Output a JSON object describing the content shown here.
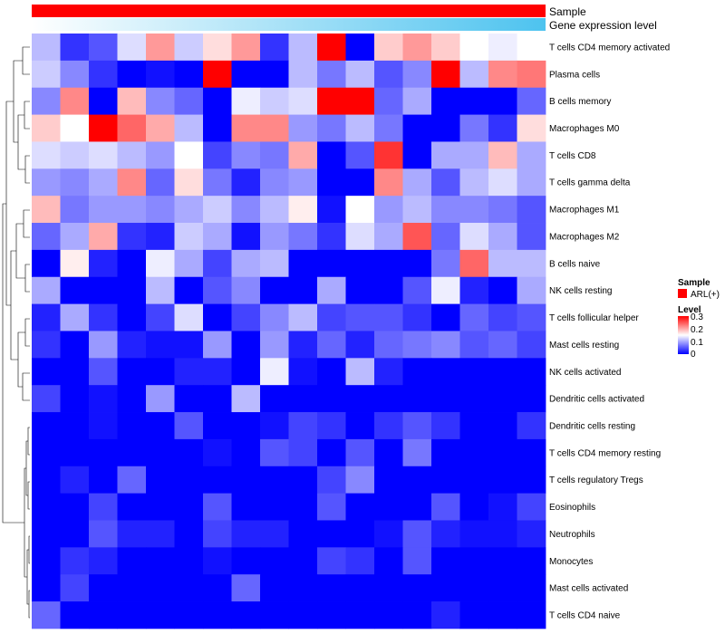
{
  "chart_data": {
    "type": "heatmap",
    "title": "",
    "column_annotations": [
      {
        "name": "Sample",
        "color": "#ff0000"
      },
      {
        "name": "Gene expression level",
        "gradient": [
          "#ffffff",
          "#4dc3ef"
        ]
      }
    ],
    "rows": [
      "T cells CD4 memory activated",
      "Plasma cells",
      "B cells memory",
      "Macrophages M0",
      "T cells CD8",
      "T cells gamma delta",
      "Macrophages M1",
      "Macrophages M2",
      "B cells naive",
      "NK cells resting",
      "T cells follicular helper",
      "Mast cells resting",
      "NK cells activated",
      "Dendritic cells activated",
      "Dendritic cells resting",
      "T cells CD4 memory resting",
      "T cells regulatory  Tregs",
      "Eosinophils",
      "Neutrophils",
      "Monocytes",
      "Mast cells activated",
      "T cells CD4 naive"
    ],
    "n_columns": 18,
    "values": [
      [
        0.11,
        0.03,
        0.05,
        0.13,
        0.21,
        0.12,
        0.17,
        0.21,
        0.03,
        0.11,
        0.3,
        0.0,
        0.18,
        0.21,
        0.18,
        0.15,
        0.14,
        0.15
      ],
      [
        0.12,
        0.08,
        0.03,
        0.0,
        0.01,
        0.0,
        0.3,
        0.0,
        0.0,
        0.11,
        0.07,
        0.11,
        0.05,
        0.08,
        0.3,
        0.11,
        0.22,
        0.23
      ],
      [
        0.08,
        0.22,
        0.0,
        0.19,
        0.08,
        0.06,
        0.0,
        0.14,
        0.12,
        0.13,
        0.3,
        0.3,
        0.06,
        0.1,
        0.0,
        0.0,
        0.0,
        0.06
      ],
      [
        0.18,
        0.15,
        0.3,
        0.24,
        0.2,
        0.11,
        0.0,
        0.22,
        0.22,
        0.09,
        0.07,
        0.11,
        0.07,
        0.0,
        0.0,
        0.07,
        0.03,
        0.17
      ],
      [
        0.13,
        0.12,
        0.13,
        0.11,
        0.09,
        0.15,
        0.04,
        0.08,
        0.07,
        0.2,
        0.0,
        0.05,
        0.27,
        0.0,
        0.1,
        0.1,
        0.19,
        0.1
      ],
      [
        0.09,
        0.08,
        0.1,
        0.22,
        0.06,
        0.17,
        0.07,
        0.02,
        0.08,
        0.09,
        0.0,
        0.0,
        0.22,
        0.1,
        0.05,
        0.11,
        0.13,
        0.1
      ],
      [
        0.19,
        0.07,
        0.09,
        0.09,
        0.08,
        0.1,
        0.12,
        0.08,
        0.11,
        0.16,
        0.01,
        0.15,
        0.09,
        0.11,
        0.08,
        0.08,
        0.07,
        0.05
      ],
      [
        0.06,
        0.1,
        0.2,
        0.03,
        0.02,
        0.12,
        0.1,
        0.01,
        0.09,
        0.07,
        0.03,
        0.13,
        0.1,
        0.25,
        0.06,
        0.13,
        0.1,
        0.05
      ],
      [
        0.0,
        0.16,
        0.02,
        0.0,
        0.14,
        0.1,
        0.04,
        0.1,
        0.11,
        0.0,
        0.0,
        0.0,
        0.0,
        0.0,
        0.07,
        0.24,
        0.11,
        0.11
      ],
      [
        0.1,
        0.0,
        0.0,
        0.0,
        0.11,
        0.0,
        0.05,
        0.08,
        0.0,
        0.0,
        0.1,
        0.0,
        0.0,
        0.05,
        0.14,
        0.02,
        0.0,
        0.1
      ],
      [
        0.02,
        0.1,
        0.03,
        0.0,
        0.04,
        0.13,
        0.0,
        0.04,
        0.08,
        0.11,
        0.04,
        0.05,
        0.05,
        0.03,
        0.0,
        0.06,
        0.04,
        0.05
      ],
      [
        0.03,
        0.0,
        0.09,
        0.02,
        0.01,
        0.01,
        0.09,
        0.0,
        0.09,
        0.02,
        0.06,
        0.02,
        0.06,
        0.07,
        0.08,
        0.05,
        0.06,
        0.04
      ],
      [
        0.0,
        0.0,
        0.05,
        0.0,
        0.0,
        0.02,
        0.02,
        0.0,
        0.14,
        0.01,
        0.0,
        0.11,
        0.02,
        0.0,
        0.0,
        0.0,
        0.0,
        0.0
      ],
      [
        0.04,
        0.0,
        0.01,
        0.0,
        0.09,
        0.0,
        0.0,
        0.11,
        0.0,
        0.0,
        0.0,
        0.0,
        0.0,
        0.0,
        0.0,
        0.0,
        0.0,
        0.0
      ],
      [
        0.0,
        0.0,
        0.01,
        0.0,
        0.0,
        0.05,
        0.0,
        0.0,
        0.01,
        0.04,
        0.03,
        0.0,
        0.03,
        0.05,
        0.03,
        0.0,
        0.0,
        0.03
      ],
      [
        0.0,
        0.0,
        0.0,
        0.0,
        0.0,
        0.0,
        0.01,
        0.0,
        0.05,
        0.04,
        0.0,
        0.05,
        0.0,
        0.07,
        0.0,
        0.0,
        0.0,
        0.0
      ],
      [
        0.0,
        0.02,
        0.0,
        0.06,
        0.0,
        0.0,
        0.0,
        0.0,
        0.0,
        0.0,
        0.04,
        0.08,
        0.0,
        0.0,
        0.0,
        0.0,
        0.0,
        0.0
      ],
      [
        0.0,
        0.0,
        0.04,
        0.0,
        0.0,
        0.0,
        0.05,
        0.0,
        0.0,
        0.0,
        0.05,
        0.0,
        0.0,
        0.0,
        0.05,
        0.0,
        0.01,
        0.04
      ],
      [
        0.0,
        0.0,
        0.05,
        0.02,
        0.02,
        0.0,
        0.04,
        0.02,
        0.02,
        0.0,
        0.0,
        0.0,
        0.01,
        0.05,
        0.02,
        0.01,
        0.01,
        0.02
      ],
      [
        0.0,
        0.03,
        0.02,
        0.0,
        0.0,
        0.0,
        0.01,
        0.0,
        0.0,
        0.0,
        0.04,
        0.03,
        0.0,
        0.05,
        0.0,
        0.0,
        0.0,
        0.0
      ],
      [
        0.0,
        0.04,
        0.0,
        0.0,
        0.0,
        0.0,
        0.0,
        0.06,
        0.0,
        0.0,
        0.0,
        0.0,
        0.0,
        0.0,
        0.0,
        0.0,
        0.0,
        0.0
      ],
      [
        0.06,
        0.0,
        0.0,
        0.0,
        0.0,
        0.0,
        0.0,
        0.0,
        0.0,
        0.0,
        0.0,
        0.0,
        0.0,
        0.0,
        0.02,
        0.0,
        0.0,
        0.0
      ]
    ],
    "color_scale": {
      "min": 0,
      "mid": 0.15,
      "max": 0.3,
      "low": "#0000ff",
      "midcolor": "#ffffff",
      "high": "#ff0000"
    },
    "legend": {
      "sample_title": "Sample",
      "sample_entry": "ARL(+)",
      "sample_color": "#ff0000",
      "level_title": "Level",
      "level_ticks": [
        "0.3",
        "0.2",
        "0.1",
        "0"
      ]
    }
  }
}
